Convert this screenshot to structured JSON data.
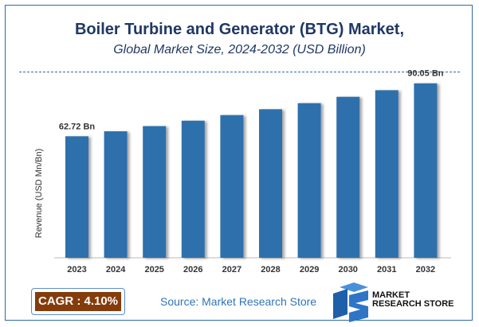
{
  "title": "Boiler Turbine and Generator (BTG) Market,",
  "subtitle": "Global Market Size, 2024-2032 (USD Billion)",
  "chart_data": {
    "type": "bar",
    "categories": [
      "2023",
      "2024",
      "2025",
      "2026",
      "2027",
      "2028",
      "2029",
      "2030",
      "2031",
      "2032"
    ],
    "values": [
      62.72,
      65.29,
      67.97,
      70.76,
      73.66,
      76.68,
      79.82,
      83.09,
      86.5,
      90.05
    ],
    "data_labels": {
      "2023": "62.72 Bn",
      "2032": "90.05 Bn"
    },
    "ylabel": "Revenue (USD Mn/Bn)",
    "xlabel": "",
    "ylim": [
      0,
      92
    ],
    "grid": false,
    "bar_color": "#2e6fac"
  },
  "footer": {
    "cagr": "CAGR : 4.10%",
    "source": "Source: Market Research Store",
    "logo_line1": "MARKET",
    "logo_line2": "RESEARCH STORE"
  }
}
